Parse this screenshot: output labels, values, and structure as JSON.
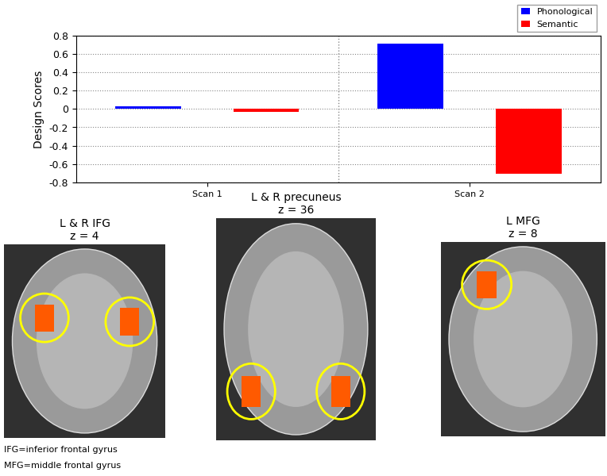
{
  "chart_data": {
    "type": "bar",
    "y_label": "Design Scores",
    "categories": [
      "Scan 1",
      "Scan 2"
    ],
    "series": [
      {
        "name": "Phonological",
        "color": "#0000ff",
        "values": [
          0.03,
          0.71
        ]
      },
      {
        "name": "Semantic",
        "color": "#ff0000",
        "values": [
          -0.03,
          -0.71
        ]
      }
    ],
    "ylim": [
      -0.8,
      0.8
    ],
    "yticks": [
      -0.8,
      -0.6,
      -0.4,
      -0.2,
      0,
      0.2,
      0.4,
      0.6,
      0.8
    ],
    "grid": true,
    "legend": "upper right"
  },
  "panels": [
    {
      "title": [
        "L & R IFG",
        "z = 4"
      ]
    },
    {
      "title": [
        "L & R precuneus",
        "z = 36"
      ]
    },
    {
      "title": [
        "L MFG",
        "z = 8"
      ]
    }
  ],
  "notes": [
    "IFG=inferior frontal gyrus",
    "MFG=middle frontal gyrus"
  ]
}
